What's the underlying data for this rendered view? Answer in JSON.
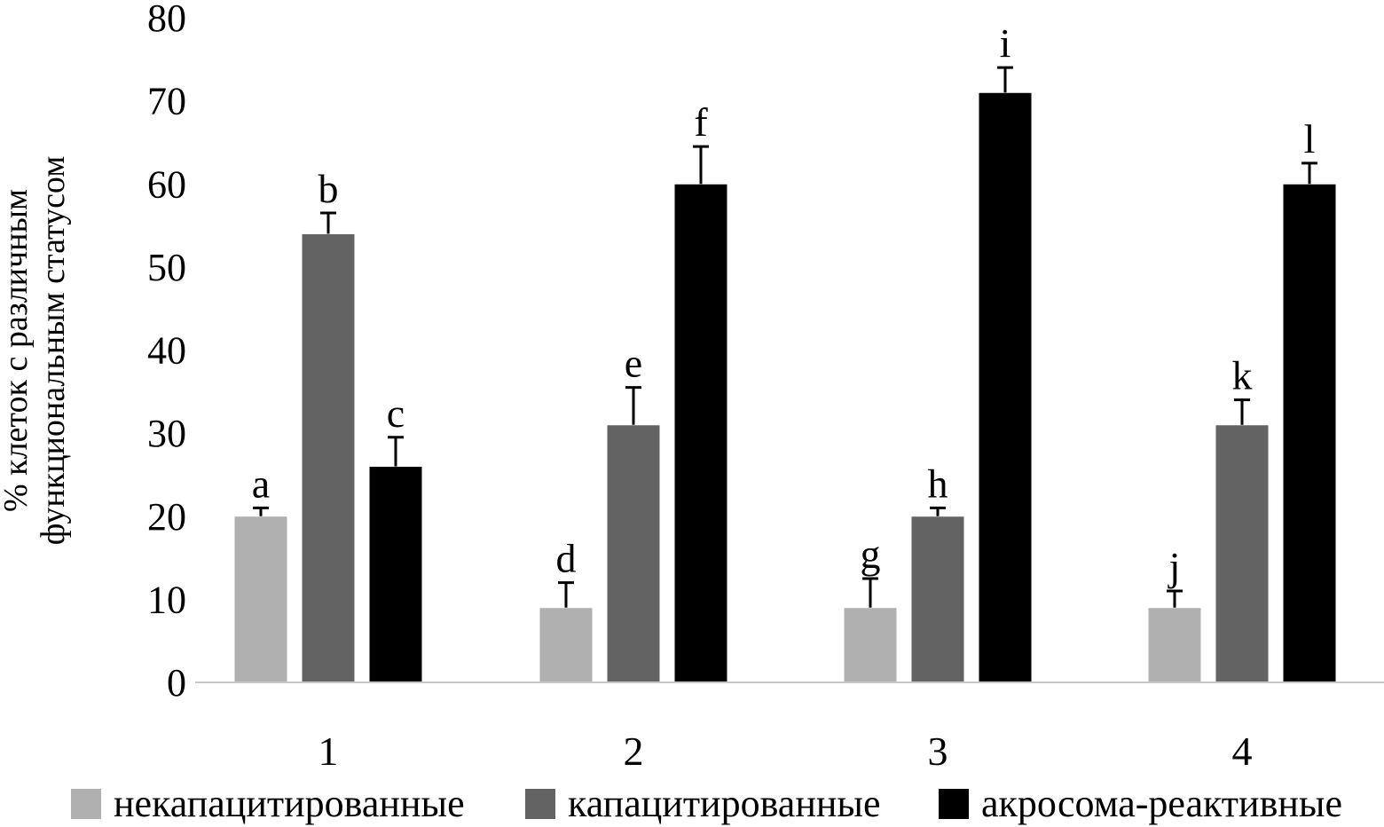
{
  "chart_data": {
    "type": "bar",
    "title": "",
    "xlabel": "",
    "ylabel": [
      "% клеток с различным",
      "функциональным статусом"
    ],
    "ylim": [
      0,
      80
    ],
    "yticks": [
      0,
      10,
      20,
      30,
      40,
      50,
      60,
      70,
      80
    ],
    "grid": false,
    "legend_position": "bottom",
    "categories": [
      "1",
      "2",
      "3",
      "4"
    ],
    "series": [
      {
        "name": "некапацитированные",
        "color": "#b0b0b0",
        "values": [
          20,
          9,
          9,
          9
        ],
        "errors": [
          1,
          3,
          3.5,
          2
        ],
        "letters": [
          "a",
          "d",
          "g",
          "j"
        ]
      },
      {
        "name": "капацитированные",
        "color": "#636363",
        "values": [
          54,
          31,
          20,
          31
        ],
        "errors": [
          2.5,
          4.5,
          1,
          3
        ],
        "letters": [
          "b",
          "e",
          "h",
          "k"
        ]
      },
      {
        "name": "акросома-реактивные",
        "color": "#000000",
        "values": [
          26,
          60,
          71,
          60
        ],
        "errors": [
          3.5,
          4.5,
          3,
          2.5
        ],
        "letters": [
          "c",
          "f",
          "i",
          "l"
        ]
      }
    ]
  }
}
